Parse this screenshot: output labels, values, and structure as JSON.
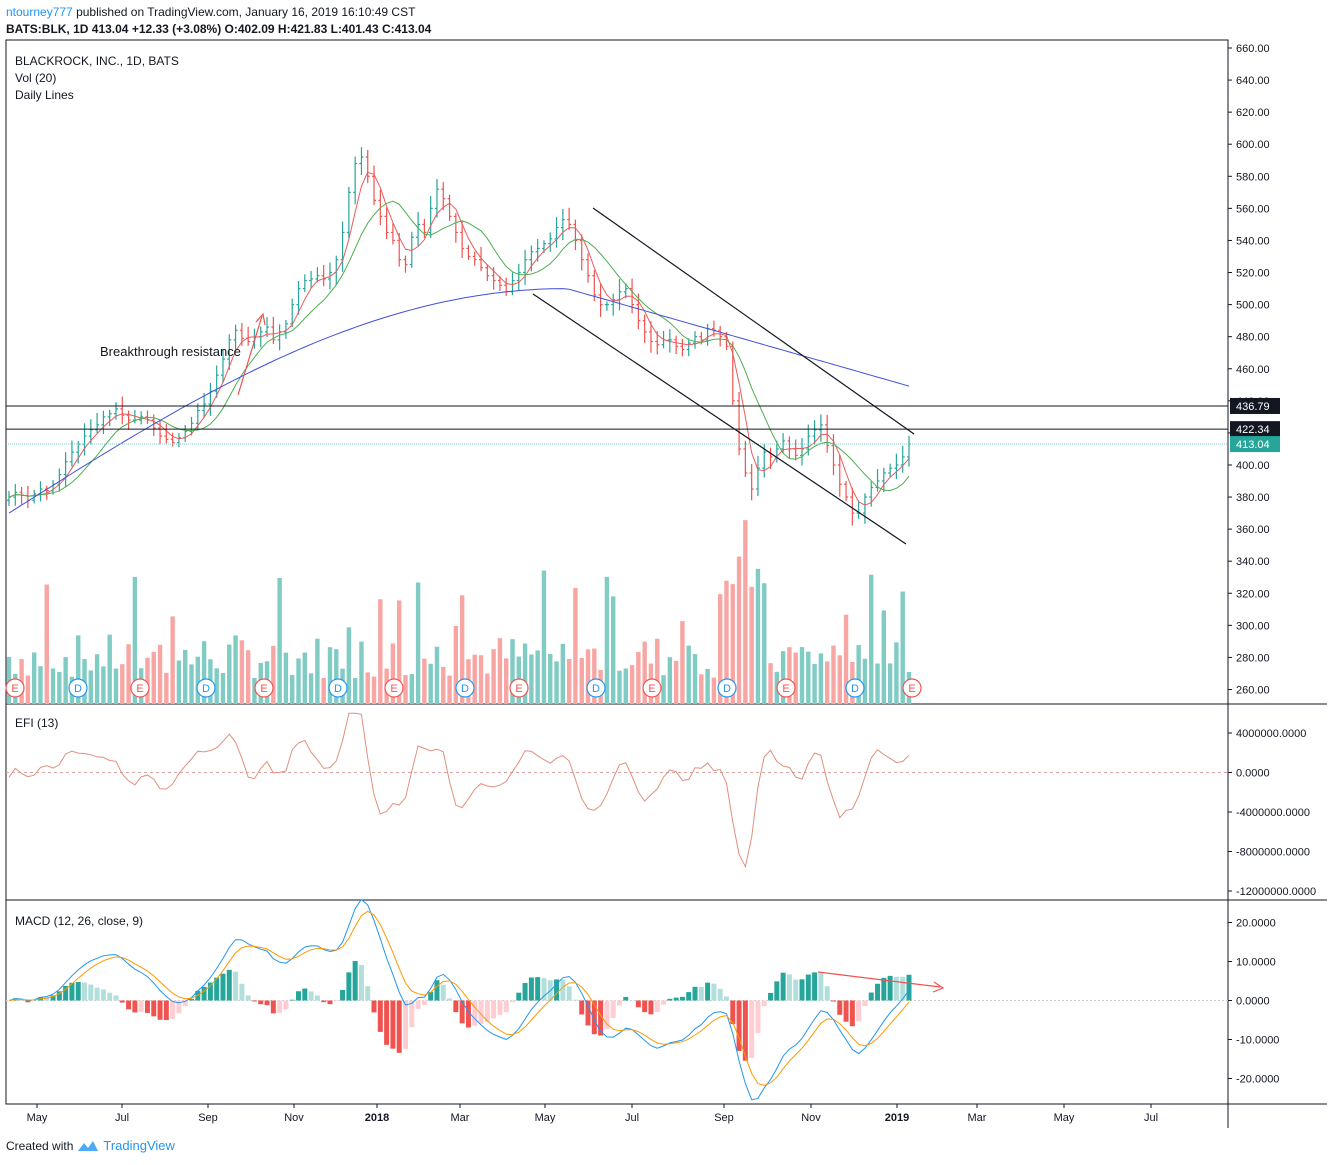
{
  "header": {
    "user": "ntourney777",
    "published": "published on TradingView.com, January 16, 2019 16:10:49 CST",
    "line2": "BATS:BLK, 1D 413.04 +12.33 (+3.08%) O:402.09 H:421.83 L:401.43 C:413.04"
  },
  "footer": {
    "created": "Created with",
    "brand": "TradingView"
  },
  "colors": {
    "up": "#26a69a",
    "down": "#ef5350",
    "ma_fast": "#e85c5c",
    "ma_mid": "#4caf50",
    "ma_slow": "#3f51d8",
    "line": "#131722"
  },
  "panes": {
    "price": {
      "legend": [
        "BLACKROCK, INC., 1D, BATS",
        "Vol (20)",
        "Daily Lines"
      ],
      "ticks": [
        "660.00",
        "640.00",
        "620.00",
        "600.00",
        "580.00",
        "560.00",
        "540.00",
        "520.00",
        "500.00",
        "480.00",
        "460.00",
        "440.00",
        "420.00",
        "400.00",
        "380.00",
        "360.00",
        "340.00",
        "320.00",
        "300.00",
        "280.00",
        "260.00"
      ],
      "annotation": "Breakthrough resistance",
      "levels": [
        "436.79",
        "422.34",
        "413.04"
      ],
      "events": [
        "E",
        "D",
        "E",
        "D",
        "E",
        "D",
        "E",
        "D",
        "E",
        "D",
        "E",
        "D",
        "E",
        "D",
        "E"
      ]
    },
    "efi": {
      "legend": "EFI (13)",
      "ticks": [
        "4000000.0000",
        "0.0000",
        "-4000000.0000",
        "-8000000.0000",
        "-12000000.0000"
      ]
    },
    "macd": {
      "legend": "MACD (12, 26, close, 9)",
      "ticks": [
        "20.0000",
        "10.0000",
        "0.0000",
        "-10.0000",
        "-20.0000"
      ]
    }
  },
  "x_axis": [
    "May",
    "Jul",
    "Sep",
    "Nov",
    "2018",
    "Mar",
    "May",
    "Jul",
    "Sep",
    "Nov",
    "2019",
    "Mar",
    "May",
    "Jul"
  ],
  "chart_data": {
    "type": "line",
    "series": [
      {
        "values": [
          380,
          383,
          381,
          378,
          382,
          385,
          384,
          388,
          394,
          402,
          408,
          413,
          418,
          422,
          425,
          430,
          432,
          435,
          431,
          428,
          428,
          430,
          428,
          423,
          418,
          416,
          414,
          417,
          421,
          426,
          434,
          438,
          446,
          456,
          466,
          478,
          484,
          479,
          477,
          480,
          483,
          486,
          478,
          483,
          488,
          500,
          510,
          515,
          516,
          518,
          516,
          520,
          528,
          545,
          570,
          588,
          592,
          580,
          565,
          555,
          545,
          540,
          528,
          525,
          542,
          550,
          545,
          560,
          572,
          566,
          555,
          545,
          535,
          530,
          528,
          523,
          518,
          515,
          512,
          508,
          515,
          520,
          528,
          533,
          535,
          538,
          541,
          548,
          553,
          550,
          540,
          528,
          518,
          506,
          500,
          500,
          503,
          508,
          510,
          500,
          490,
          483,
          477,
          475,
          478,
          478,
          474,
          472,
          476,
          480,
          478,
          485,
          484,
          480,
          474,
          440,
          410,
          395,
          385,
          398,
          408,
          405,
          410,
          415,
          410,
          406,
          410,
          418,
          422,
          425,
          412,
          400,
          388,
          380,
          370,
          370,
          380,
          386,
          390,
          395,
          398,
          400,
          405,
          413
        ]
      }
    ]
  }
}
